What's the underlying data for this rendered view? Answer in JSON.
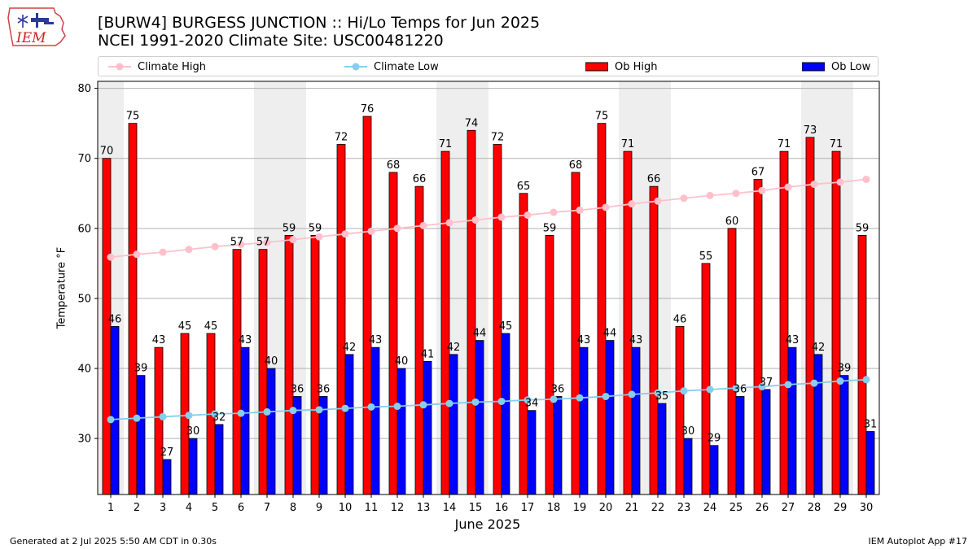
{
  "header": {
    "title_line1": "[BURW4] BURGESS JUNCTION :: Hi/Lo Temps for Jun 2025",
    "title_line2": "NCEI 1991-2020 Climate Site: USC00481220",
    "logo_text": "IEM"
  },
  "legend": {
    "climate_high": "Climate High",
    "climate_low": "Climate Low",
    "ob_high": "Ob High",
    "ob_low": "Ob Low"
  },
  "footer": {
    "generated": "Generated at 2 Jul 2025 5:50 AM CDT in 0.30s",
    "app": "IEM Autoplot App #17"
  },
  "colors": {
    "ob_high": "#ff0000",
    "ob_low": "#0000ff",
    "climate_high": "#ffc0cb",
    "climate_low": "#87ceeb",
    "weekend_band": "#eeeeee"
  },
  "chart_data": {
    "type": "bar",
    "xlabel": "June 2025",
    "ylabel": "Temperature °F",
    "ylim": [
      22,
      81
    ],
    "yticks": [
      30,
      40,
      50,
      60,
      70,
      80
    ],
    "grid": true,
    "legend_position": "top",
    "categories": [
      "1",
      "2",
      "3",
      "4",
      "5",
      "6",
      "7",
      "8",
      "9",
      "10",
      "11",
      "12",
      "13",
      "14",
      "15",
      "16",
      "17",
      "18",
      "19",
      "20",
      "21",
      "22",
      "23",
      "24",
      "25",
      "26",
      "27",
      "28",
      "29",
      "30"
    ],
    "weekend_days": [
      1,
      7,
      8,
      14,
      15,
      21,
      22,
      28,
      29
    ],
    "series": [
      {
        "name": "Ob High",
        "kind": "bar",
        "values": [
          70,
          75,
          43,
          45,
          45,
          57,
          57,
          59,
          59,
          72,
          76,
          68,
          66,
          71,
          74,
          72,
          65,
          59,
          68,
          75,
          71,
          66,
          46,
          55,
          60,
          67,
          71,
          73,
          71,
          59
        ]
      },
      {
        "name": "Ob Low",
        "kind": "bar",
        "values": [
          46,
          39,
          27,
          30,
          32,
          43,
          40,
          36,
          36,
          42,
          43,
          40,
          41,
          42,
          44,
          45,
          34,
          36,
          43,
          44,
          43,
          35,
          30,
          29,
          36,
          37,
          43,
          42,
          39,
          31
        ]
      },
      {
        "name": "Climate High",
        "kind": "line",
        "values": [
          55.9,
          56.3,
          56.6,
          57.0,
          57.4,
          57.7,
          58.0,
          58.4,
          58.8,
          59.2,
          59.6,
          60.0,
          60.4,
          60.8,
          61.2,
          61.6,
          61.9,
          62.3,
          62.6,
          63.0,
          63.5,
          63.9,
          64.3,
          64.7,
          65.0,
          65.4,
          65.9,
          66.3,
          66.6,
          67.0
        ]
      },
      {
        "name": "Climate Low",
        "kind": "line",
        "values": [
          32.7,
          32.9,
          33.1,
          33.3,
          33.5,
          33.6,
          33.8,
          34.0,
          34.1,
          34.3,
          34.5,
          34.6,
          34.8,
          35.0,
          35.2,
          35.3,
          35.5,
          35.6,
          35.8,
          36.0,
          36.3,
          36.5,
          36.8,
          37.0,
          37.2,
          37.4,
          37.7,
          37.9,
          38.2,
          38.4
        ]
      }
    ]
  }
}
